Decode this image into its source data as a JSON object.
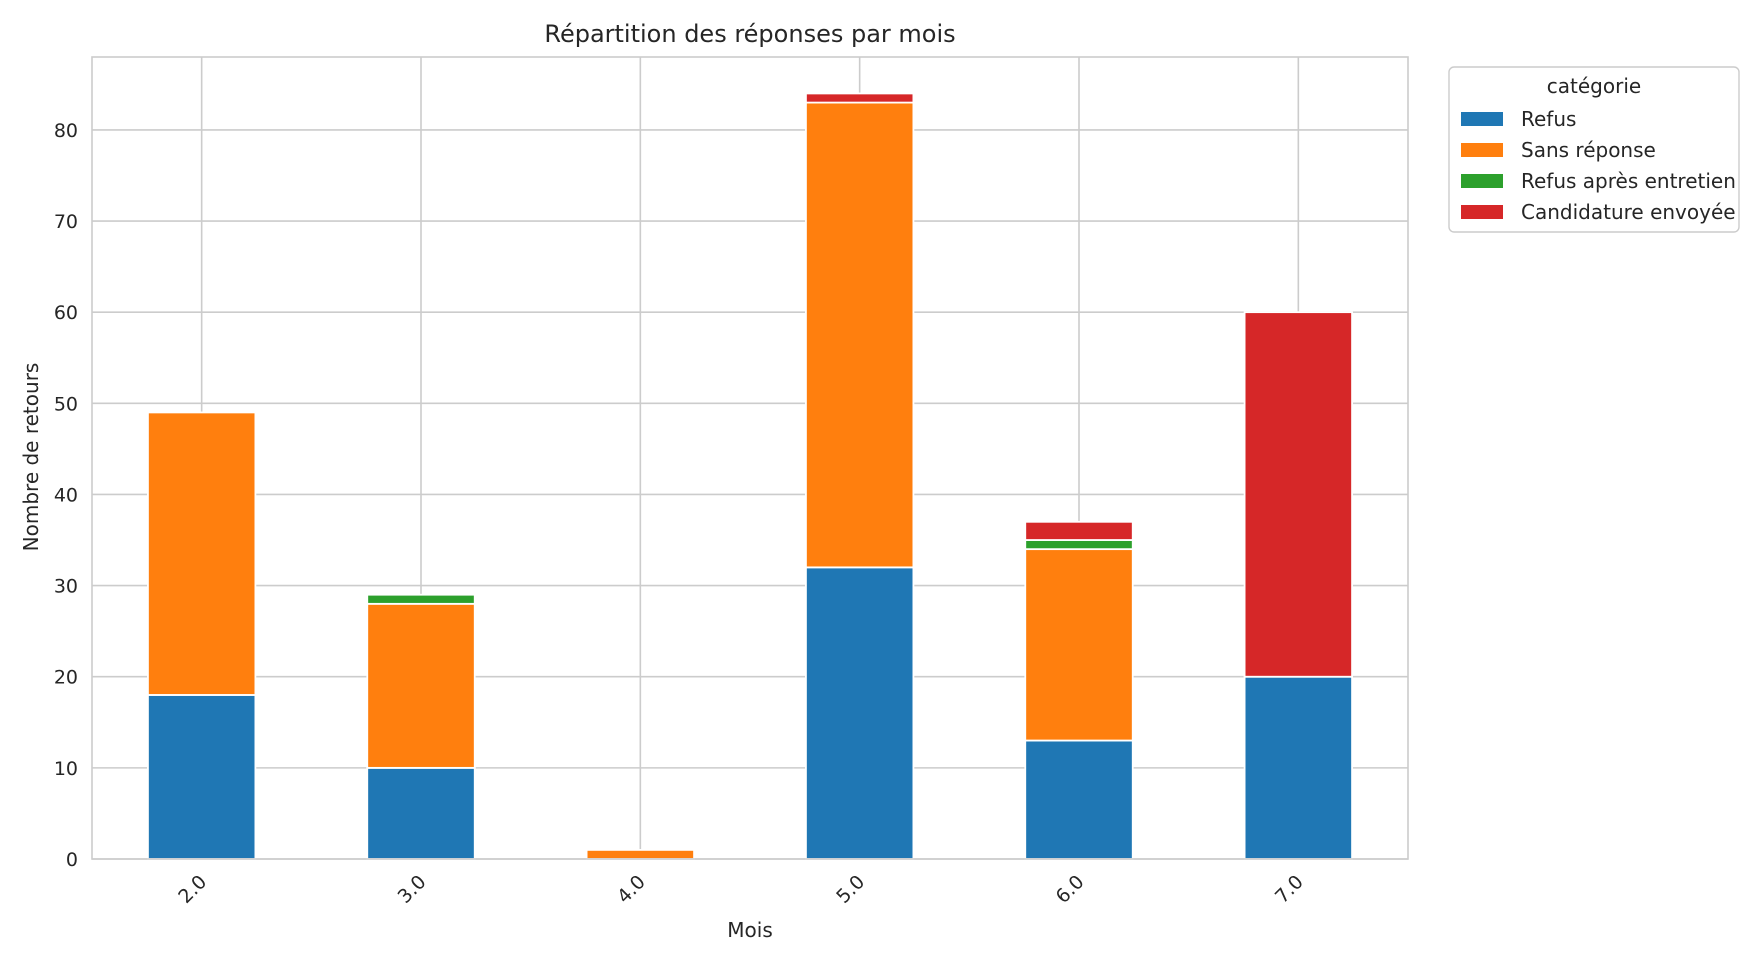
{
  "chart_data": {
    "type": "bar",
    "stacked": true,
    "title": "Répartition des réponses par mois",
    "xlabel": "Mois",
    "ylabel": "Nombre de retours",
    "categories": [
      "2.0",
      "3.0",
      "4.0",
      "5.0",
      "6.0",
      "7.0"
    ],
    "ylim": [
      0,
      88
    ],
    "yticks": [
      0,
      10,
      20,
      30,
      40,
      50,
      60,
      70,
      80
    ],
    "grid": true,
    "legend": {
      "title": "catégorie",
      "placement": "outside-top-right"
    },
    "series": [
      {
        "name": "Refus",
        "color": "#1f77b4",
        "values": [
          18,
          10,
          0,
          32,
          13,
          20
        ]
      },
      {
        "name": "Sans réponse",
        "color": "#ff7f0e",
        "values": [
          31,
          18,
          1,
          51,
          21,
          0
        ]
      },
      {
        "name": "Refus après entretien",
        "color": "#2ca02c",
        "values": [
          0,
          1,
          0,
          0,
          1,
          0
        ]
      },
      {
        "name": "Candidature envoyée",
        "color": "#d62728",
        "values": [
          0,
          0,
          0,
          1,
          2,
          40
        ]
      }
    ]
  }
}
